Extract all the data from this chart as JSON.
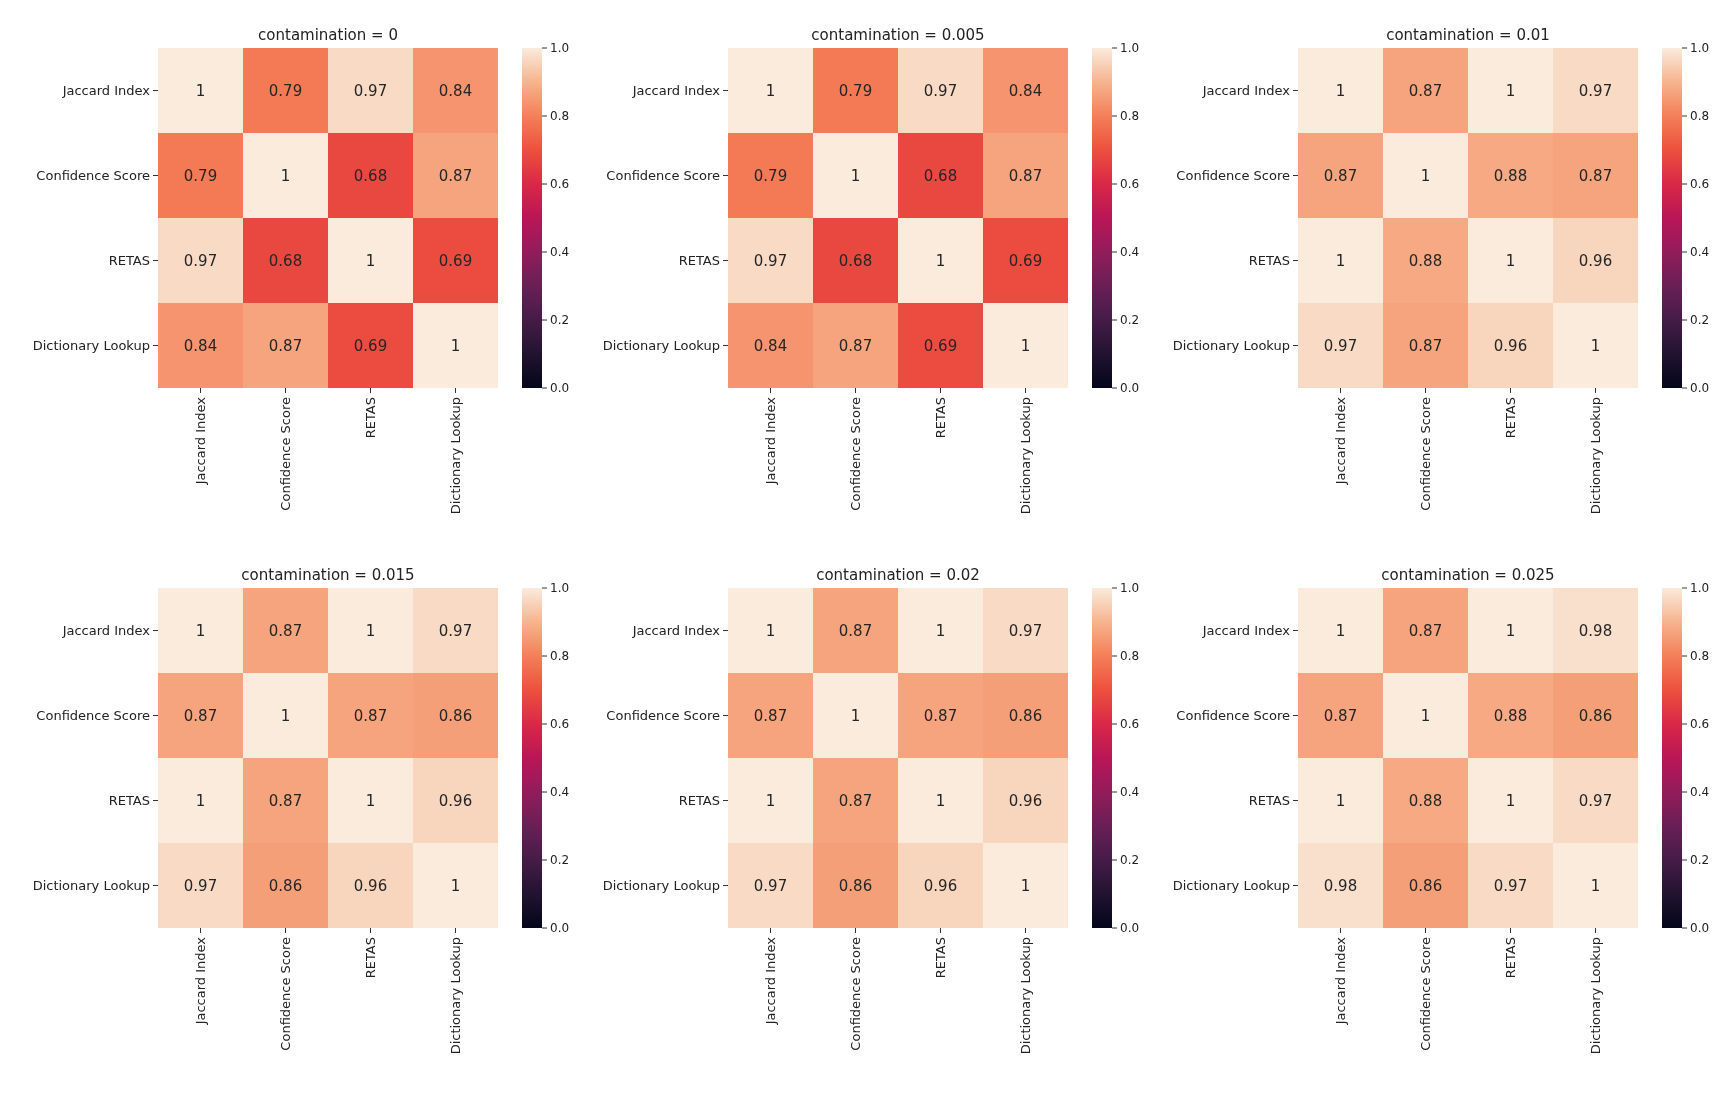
{
  "chart_data": [
    {
      "type": "heatmap",
      "title": "contamination = 0",
      "categories": [
        "Jaccard Index",
        "Confidence Score",
        "RETAS",
        "Dictionary Lookup"
      ],
      "y_categories": [
        "Jaccard Index",
        "Confidence Score",
        "RETAS",
        "Dictionary Lookup"
      ],
      "cells": [
        [
          1,
          0.79,
          0.97,
          0.84
        ],
        [
          0.79,
          1,
          0.68,
          0.87
        ],
        [
          0.97,
          0.68,
          1,
          0.69
        ],
        [
          0.84,
          0.87,
          0.69,
          1
        ]
      ],
      "clim": [
        0,
        1
      ],
      "cticks": [
        {
          "value": 0,
          "label": "0.0"
        },
        {
          "value": 0.2,
          "label": "0.2"
        },
        {
          "value": 0.4,
          "label": "0.4"
        },
        {
          "value": 0.6,
          "label": "0.6"
        },
        {
          "value": 0.8,
          "label": "0.8"
        },
        {
          "value": 1,
          "label": "1.0"
        }
      ],
      "data_labels": true
    },
    {
      "type": "heatmap",
      "title": "contamination = 0.005",
      "categories": [
        "Jaccard Index",
        "Confidence Score",
        "RETAS",
        "Dictionary Lookup"
      ],
      "y_categories": [
        "Jaccard Index",
        "Confidence Score",
        "RETAS",
        "Dictionary Lookup"
      ],
      "cells": [
        [
          1,
          0.79,
          0.97,
          0.84
        ],
        [
          0.79,
          1,
          0.68,
          0.87
        ],
        [
          0.97,
          0.68,
          1,
          0.69
        ],
        [
          0.84,
          0.87,
          0.69,
          1
        ]
      ],
      "clim": [
        0,
        1
      ],
      "cticks": [
        {
          "value": 0,
          "label": "0.0"
        },
        {
          "value": 0.2,
          "label": "0.2"
        },
        {
          "value": 0.4,
          "label": "0.4"
        },
        {
          "value": 0.6,
          "label": "0.6"
        },
        {
          "value": 0.8,
          "label": "0.8"
        },
        {
          "value": 1,
          "label": "1.0"
        }
      ],
      "data_labels": true
    },
    {
      "type": "heatmap",
      "title": "contamination = 0.01",
      "categories": [
        "Jaccard Index",
        "Confidence Score",
        "RETAS",
        "Dictionary Lookup"
      ],
      "y_categories": [
        "Jaccard Index",
        "Confidence Score",
        "RETAS",
        "Dictionary Lookup"
      ],
      "cells": [
        [
          1,
          0.87,
          1,
          0.97
        ],
        [
          0.87,
          1,
          0.88,
          0.87
        ],
        [
          1,
          0.88,
          1,
          0.96
        ],
        [
          0.97,
          0.87,
          0.96,
          1
        ]
      ],
      "clim": [
        0,
        1
      ],
      "cticks": [
        {
          "value": 0,
          "label": "0.0"
        },
        {
          "value": 0.2,
          "label": "0.2"
        },
        {
          "value": 0.4,
          "label": "0.4"
        },
        {
          "value": 0.6,
          "label": "0.6"
        },
        {
          "value": 0.8,
          "label": "0.8"
        },
        {
          "value": 1,
          "label": "1.0"
        }
      ],
      "data_labels": true
    },
    {
      "type": "heatmap",
      "title": "contamination = 0.015",
      "categories": [
        "Jaccard Index",
        "Confidence Score",
        "RETAS",
        "Dictionary Lookup"
      ],
      "y_categories": [
        "Jaccard Index",
        "Confidence Score",
        "RETAS",
        "Dictionary Lookup"
      ],
      "cells": [
        [
          1,
          0.87,
          1,
          0.97
        ],
        [
          0.87,
          1,
          0.87,
          0.86
        ],
        [
          1,
          0.87,
          1,
          0.96
        ],
        [
          0.97,
          0.86,
          0.96,
          1
        ]
      ],
      "clim": [
        0,
        1
      ],
      "cticks": [
        {
          "value": 0,
          "label": "0.0"
        },
        {
          "value": 0.2,
          "label": "0.2"
        },
        {
          "value": 0.4,
          "label": "0.4"
        },
        {
          "value": 0.6,
          "label": "0.6"
        },
        {
          "value": 0.8,
          "label": "0.8"
        },
        {
          "value": 1,
          "label": "1.0"
        }
      ],
      "data_labels": true
    },
    {
      "type": "heatmap",
      "title": "contamination = 0.02",
      "categories": [
        "Jaccard Index",
        "Confidence Score",
        "RETAS",
        "Dictionary Lookup"
      ],
      "y_categories": [
        "Jaccard Index",
        "Confidence Score",
        "RETAS",
        "Dictionary Lookup"
      ],
      "cells": [
        [
          1,
          0.87,
          1,
          0.97
        ],
        [
          0.87,
          1,
          0.87,
          0.86
        ],
        [
          1,
          0.87,
          1,
          0.96
        ],
        [
          0.97,
          0.86,
          0.96,
          1
        ]
      ],
      "clim": [
        0,
        1
      ],
      "cticks": [
        {
          "value": 0,
          "label": "0.0"
        },
        {
          "value": 0.2,
          "label": "0.2"
        },
        {
          "value": 0.4,
          "label": "0.4"
        },
        {
          "value": 0.6,
          "label": "0.6"
        },
        {
          "value": 0.8,
          "label": "0.8"
        },
        {
          "value": 1,
          "label": "1.0"
        }
      ],
      "data_labels": true
    },
    {
      "type": "heatmap",
      "title": "contamination = 0.025",
      "categories": [
        "Jaccard Index",
        "Confidence Score",
        "RETAS",
        "Dictionary Lookup"
      ],
      "y_categories": [
        "Jaccard Index",
        "Confidence Score",
        "RETAS",
        "Dictionary Lookup"
      ],
      "cells": [
        [
          1,
          0.87,
          1,
          0.98
        ],
        [
          0.87,
          1,
          0.88,
          0.86
        ],
        [
          1,
          0.88,
          1,
          0.97
        ],
        [
          0.98,
          0.86,
          0.97,
          1
        ]
      ],
      "clim": [
        0,
        1
      ],
      "cticks": [
        {
          "value": 0,
          "label": "0.0"
        },
        {
          "value": 0.2,
          "label": "0.2"
        },
        {
          "value": 0.4,
          "label": "0.4"
        },
        {
          "value": 0.6,
          "label": "0.6"
        },
        {
          "value": 0.8,
          "label": "0.8"
        },
        {
          "value": 1,
          "label": "1.0"
        }
      ],
      "data_labels": true
    }
  ]
}
